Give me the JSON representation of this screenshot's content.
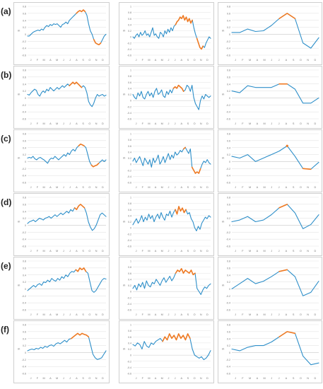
{
  "row_labels": [
    "(a)",
    "(b)",
    "(c)",
    "(d)",
    "(e)",
    "(f)"
  ],
  "colors": {
    "series": "#2e8fc9",
    "highlight": "#f07a22",
    "grid": "#e3e3e3",
    "axis": "#c8c8c8",
    "frame": "#cfcfcf"
  },
  "chart_data": [
    {
      "row": "(a)",
      "col": "smoothed",
      "type": "line",
      "x_ticks": [
        "J",
        "F",
        "M",
        "A",
        "M",
        "J",
        "J",
        "A",
        "S",
        "O",
        "N",
        "D"
      ],
      "y_ticks": [
        "0.8",
        "0.6",
        "0.4",
        "0.2",
        "0",
        "-0.2",
        "-0.4",
        "-0.6"
      ],
      "ylim": [
        -0.6,
        0.8
      ],
      "ylabel": "m",
      "values": [
        -0.05,
        -0.05,
        0.0,
        0.05,
        0.08,
        0.1,
        0.12,
        0.1,
        0.15,
        0.12,
        0.2,
        0.25,
        0.22,
        0.28,
        0.25,
        0.3,
        0.28,
        0.3,
        0.25,
        0.2,
        0.28,
        0.3,
        0.35,
        0.3,
        0.4,
        0.45,
        0.5,
        0.55,
        0.6,
        0.65,
        0.68,
        0.65,
        0.7,
        0.65,
        0.55,
        0.3,
        0.1,
        0.0,
        -0.15,
        -0.25,
        -0.28,
        -0.3,
        -0.25,
        -0.15,
        -0.05,
        0.0
      ],
      "highlight": [
        [
          28,
          33
        ],
        [
          38,
          42
        ]
      ]
    },
    {
      "row": "(a)",
      "col": "daily",
      "type": "line",
      "x_ticks": [
        "J",
        "F",
        "M",
        "A",
        "M",
        "J",
        "J",
        "A",
        "S",
        "O",
        "N",
        "D"
      ],
      "y_ticks": [
        "1",
        "0.8",
        "0.6",
        "0.4",
        "0.2",
        "0",
        "-0.2",
        "-0.4",
        "-0.6"
      ],
      "ylim": [
        -0.6,
        1.0
      ],
      "ylabel": "m",
      "values": [
        0.0,
        -0.05,
        0.05,
        0.1,
        0.0,
        0.15,
        0.05,
        0.1,
        0.2,
        0.05,
        0.1,
        0.0,
        0.15,
        0.3,
        0.05,
        0.1,
        0.0,
        -0.05,
        0.15,
        0.1,
        0.0,
        0.2,
        0.1,
        0.25,
        0.15,
        0.3,
        0.2,
        0.35,
        0.4,
        0.5,
        0.55,
        0.65,
        0.6,
        0.7,
        0.55,
        0.65,
        0.5,
        0.6,
        0.45,
        0.55,
        0.3,
        0.1,
        -0.05,
        -0.2,
        -0.35,
        -0.4,
        -0.3,
        -0.35,
        -0.2,
        -0.1,
        0.0,
        -0.05
      ],
      "highlight": [
        [
          28,
          39
        ],
        [
          42,
          46
        ]
      ]
    },
    {
      "row": "(a)",
      "col": "monthly",
      "type": "line",
      "x_ticks": [
        "J",
        "F",
        "M",
        "A",
        "M",
        "J",
        "J",
        "A",
        "S",
        "O",
        "N",
        "D"
      ],
      "y_ticks": [
        "0.8",
        "0.6",
        "0.4",
        "0.2",
        "0",
        "-0.2",
        "-0.4",
        "-0.6"
      ],
      "ylim": [
        -0.6,
        0.8
      ],
      "ylabel": "m",
      "values": [
        0.05,
        0.05,
        0.15,
        0.08,
        0.1,
        0.25,
        0.45,
        0.6,
        0.45,
        -0.25,
        -0.4,
        -0.1
      ],
      "highlight": [
        [
          6,
          8
        ]
      ]
    },
    {
      "row": "(b)",
      "col": "smoothed",
      "type": "line",
      "x_ticks": [
        "J",
        "F",
        "M",
        "A",
        "M",
        "J",
        "J",
        "A",
        "S",
        "O",
        "N",
        "D"
      ],
      "y_ticks": [
        "0.8",
        "0.6",
        "0.4",
        "0.2",
        "0",
        "-0.2",
        "-0.4",
        "-0.6"
      ],
      "ylim": [
        -0.6,
        0.8
      ],
      "ylabel": "m",
      "values": [
        0.1,
        0.08,
        0.15,
        0.2,
        0.25,
        0.22,
        0.1,
        0.05,
        0.15,
        0.2,
        0.15,
        0.25,
        0.2,
        0.3,
        0.25,
        0.2,
        0.25,
        0.3,
        0.25,
        0.3,
        0.35,
        0.3,
        0.35,
        0.4,
        0.35,
        0.4,
        0.45,
        0.4,
        0.45,
        0.4,
        0.35,
        0.3,
        0.35,
        0.3,
        0.15,
        -0.1,
        -0.2,
        -0.25,
        -0.15,
        0.0,
        0.1,
        0.05,
        0.08,
        0.1,
        0.05,
        0.08
      ],
      "highlight": [
        [
          24,
          31
        ]
      ]
    },
    {
      "row": "(b)",
      "col": "daily",
      "type": "line",
      "x_ticks": [
        "J",
        "F",
        "M",
        "A",
        "M",
        "J",
        "J",
        "A",
        "S",
        "O",
        "N",
        "D"
      ],
      "y_ticks": [
        "1",
        "0.8",
        "0.6",
        "0.4",
        "0.2",
        "0",
        "-0.2",
        "-0.4",
        "-0.6"
      ],
      "ylim": [
        -0.6,
        1.0
      ],
      "ylabel": "m",
      "values": [
        0.2,
        0.1,
        0.05,
        0.25,
        0.15,
        0.3,
        0.1,
        0.05,
        0.2,
        0.3,
        0.15,
        0.25,
        0.1,
        0.3,
        0.4,
        0.2,
        0.25,
        0.35,
        0.15,
        0.1,
        0.3,
        0.2,
        0.35,
        0.25,
        0.4,
        0.45,
        0.4,
        0.5,
        0.45,
        0.4,
        0.3,
        0.35,
        0.5,
        0.45,
        0.3,
        0.5,
        0.1,
        -0.1,
        -0.2,
        -0.3,
        0.0,
        0.15,
        0.05,
        0.2,
        0.15,
        0.1,
        0.15
      ],
      "highlight": [
        [
          24,
          30
        ]
      ]
    },
    {
      "row": "(b)",
      "col": "monthly",
      "type": "line",
      "x_ticks": [
        "J",
        "F",
        "M",
        "A",
        "M",
        "J",
        "J",
        "A",
        "S",
        "O",
        "N",
        "D"
      ],
      "y_ticks": [
        "0.8",
        "0.6",
        "0.4",
        "0.2",
        "0",
        "-0.2",
        "-0.4",
        "-0.6"
      ],
      "ylim": [
        -0.6,
        0.8
      ],
      "ylabel": "m",
      "values": [
        0.2,
        0.15,
        0.35,
        0.3,
        0.3,
        0.3,
        0.4,
        0.4,
        0.25,
        -0.15,
        -0.15,
        0.0
      ],
      "highlight": [
        [
          6,
          7
        ]
      ]
    },
    {
      "row": "(c)",
      "col": "smoothed",
      "type": "line",
      "x_ticks": [
        "J",
        "F",
        "M",
        "A",
        "M",
        "J",
        "J",
        "A",
        "S",
        "O",
        "N",
        "D"
      ],
      "y_ticks": [
        "0.8",
        "0.6",
        "0.4",
        "0.2",
        "0",
        "-0.2",
        "-0.4",
        "-0.6"
      ],
      "ylim": [
        -0.6,
        0.8
      ],
      "ylabel": "m",
      "values": [
        0.1,
        0.12,
        0.1,
        0.15,
        0.08,
        0.05,
        0.1,
        0.12,
        0.08,
        0.05,
        0.0,
        -0.05,
        0.05,
        0.1,
        0.08,
        0.15,
        0.1,
        0.05,
        0.1,
        0.15,
        0.2,
        0.15,
        0.25,
        0.2,
        0.3,
        0.35,
        0.3,
        0.4,
        0.45,
        0.5,
        0.48,
        0.45,
        0.4,
        0.2,
        0.0,
        -0.1,
        -0.15,
        -0.12,
        -0.1,
        -0.05,
        0.0,
        0.05,
        0.0,
        0.05
      ],
      "highlight": [
        [
          28,
          31
        ],
        [
          35,
          39
        ]
      ]
    },
    {
      "row": "(c)",
      "col": "daily",
      "type": "line",
      "x_ticks": [
        "J",
        "F",
        "M",
        "A",
        "M",
        "J",
        "J",
        "A",
        "S",
        "O",
        "N",
        "D"
      ],
      "y_ticks": [
        "1",
        "0.8",
        "0.6",
        "0.4",
        "0.2",
        "0",
        "-0.2",
        "-0.4",
        "-0.6"
      ],
      "ylim": [
        -0.6,
        1.0
      ],
      "ylabel": "m",
      "values": [
        0.1,
        0.2,
        0.05,
        0.15,
        0.25,
        0.1,
        -0.05,
        0.2,
        0.1,
        0.0,
        0.15,
        -0.1,
        0.2,
        0.05,
        0.15,
        0.3,
        0.0,
        0.1,
        0.25,
        0.05,
        0.2,
        0.35,
        0.15,
        0.3,
        0.2,
        0.4,
        0.3,
        0.35,
        0.45,
        0.4,
        0.5,
        0.55,
        0.45,
        0.35,
        0.5,
        -0.1,
        -0.2,
        -0.3,
        -0.25,
        -0.3,
        -0.15,
        0.0,
        0.1,
        0.05,
        0.15,
        0.05,
        0.0
      ],
      "highlight": [
        [
          30,
          31
        ],
        [
          35,
          40
        ]
      ]
    },
    {
      "row": "(c)",
      "col": "monthly",
      "type": "line",
      "x_ticks": [
        "J",
        "F",
        "M",
        "A",
        "M",
        "J",
        "J",
        "A",
        "S",
        "O",
        "N",
        "D"
      ],
      "y_ticks": [
        "0.8",
        "0.6",
        "0.4",
        "0.2",
        "0",
        "-0.2",
        "-0.4",
        "-0.6"
      ],
      "ylim": [
        -0.6,
        0.8
      ],
      "ylabel": "m",
      "values": [
        0.15,
        0.1,
        0.2,
        0.0,
        0.1,
        0.2,
        0.3,
        0.45,
        0.15,
        -0.2,
        -0.22,
        -0.02
      ],
      "highlight": [
        [
          7,
          7
        ],
        [
          9,
          10
        ]
      ]
    },
    {
      "row": "(d)",
      "col": "smoothed",
      "type": "line",
      "x_ticks": [
        "J",
        "F",
        "M",
        "A",
        "M",
        "J",
        "J",
        "A",
        "S",
        "O",
        "N",
        "D"
      ],
      "y_ticks": [
        "0.8",
        "0.6",
        "0.4",
        "0.2",
        "0",
        "-0.2",
        "-0.4",
        "-0.6"
      ],
      "ylim": [
        -0.6,
        0.8
      ],
      "ylabel": "m",
      "values": [
        0.05,
        0.1,
        0.12,
        0.15,
        0.1,
        0.15,
        0.2,
        0.18,
        0.15,
        0.2,
        0.22,
        0.25,
        0.2,
        0.25,
        0.3,
        0.25,
        0.3,
        0.35,
        0.3,
        0.35,
        0.4,
        0.35,
        0.45,
        0.4,
        0.5,
        0.45,
        0.55,
        0.6,
        0.55,
        0.5,
        0.35,
        0.1,
        -0.05,
        -0.15,
        -0.1,
        0.0,
        0.15,
        0.3,
        0.35,
        0.3,
        0.25
      ],
      "highlight": [
        [
          24,
          29
        ]
      ]
    },
    {
      "row": "(d)",
      "col": "daily",
      "type": "line",
      "x_ticks": [
        "J",
        "F",
        "M",
        "A",
        "M",
        "J",
        "J",
        "A",
        "S",
        "O",
        "N",
        "D"
      ],
      "y_ticks": [
        "1",
        "0.8",
        "0.6",
        "0.4",
        "0.2",
        "0",
        "-0.2",
        "-0.4",
        "-0.6"
      ],
      "ylim": [
        -0.6,
        1.0
      ],
      "ylabel": "m",
      "values": [
        0.1,
        0.2,
        0.3,
        0.15,
        0.25,
        0.4,
        0.2,
        0.35,
        0.25,
        0.45,
        0.3,
        0.4,
        0.2,
        0.35,
        0.45,
        0.3,
        0.5,
        0.35,
        0.25,
        0.45,
        0.4,
        0.55,
        0.35,
        0.5,
        0.6,
        0.45,
        0.7,
        0.55,
        0.65,
        0.5,
        0.6,
        0.45,
        0.5,
        0.3,
        0.2,
        0.0,
        -0.1,
        0.05,
        -0.05,
        0.15,
        0.25,
        0.35,
        0.3,
        0.4,
        0.35
      ],
      "highlight": [
        [
          24,
          30
        ]
      ]
    },
    {
      "row": "(d)",
      "col": "monthly",
      "type": "line",
      "x_ticks": [
        "J",
        "F",
        "M",
        "A",
        "M",
        "J",
        "J",
        "A",
        "S",
        "O",
        "N",
        "D"
      ],
      "y_ticks": [
        "0.8",
        "0.6",
        "0.4",
        "0.2",
        "0",
        "-0.2",
        "-0.4",
        "-0.6"
      ],
      "ylim": [
        -0.6,
        0.8
      ],
      "ylabel": "m",
      "values": [
        0.1,
        0.15,
        0.25,
        0.1,
        0.15,
        0.3,
        0.5,
        0.6,
        0.35,
        -0.1,
        0.02,
        0.3
      ],
      "highlight": [
        [
          6,
          7
        ]
      ]
    },
    {
      "row": "(e)",
      "col": "smoothed",
      "type": "line",
      "x_ticks": [
        "J",
        "F",
        "M",
        "A",
        "M",
        "J",
        "J",
        "A",
        "S",
        "O",
        "N",
        "D"
      ],
      "y_ticks": [
        "0.8",
        "0.6",
        "0.4",
        "0.2",
        "0",
        "-0.2",
        "-0.4",
        "-0.6"
      ],
      "ylim": [
        -0.6,
        0.8
      ],
      "ylabel": "m",
      "values": [
        -0.05,
        0.0,
        0.05,
        0.1,
        0.05,
        0.12,
        0.15,
        0.1,
        0.2,
        0.18,
        0.25,
        0.2,
        0.3,
        0.25,
        0.22,
        0.3,
        0.25,
        0.35,
        0.3,
        0.4,
        0.35,
        0.45,
        0.5,
        0.48,
        0.55,
        0.5,
        0.6,
        0.55,
        0.6,
        0.5,
        0.45,
        0.2,
        -0.05,
        -0.1,
        -0.05,
        0.05,
        0.15,
        0.25,
        0.3,
        0.28
      ],
      "highlight": [
        [
          24,
          29
        ]
      ]
    },
    {
      "row": "(e)",
      "col": "daily",
      "type": "line",
      "x_ticks": [
        "J",
        "F",
        "M",
        "A",
        "M",
        "J",
        "J",
        "A",
        "S",
        "O",
        "N",
        "D"
      ],
      "y_ticks": [
        "1",
        "0.8",
        "0.6",
        "0.4",
        "0.2",
        "0",
        "-0.2",
        "-0.4",
        "-0.6"
      ],
      "ylim": [
        -0.6,
        1.0
      ],
      "ylabel": "m",
      "values": [
        0.1,
        0.2,
        0.05,
        0.25,
        0.15,
        0.3,
        0.1,
        0.35,
        0.2,
        0.15,
        0.3,
        0.25,
        0.4,
        0.3,
        0.2,
        0.35,
        0.45,
        0.3,
        0.4,
        0.5,
        0.35,
        0.45,
        0.6,
        0.7,
        0.65,
        0.75,
        0.6,
        0.7,
        0.65,
        0.6,
        0.7,
        0.55,
        0.6,
        0.1,
        0.0,
        -0.1,
        0.05,
        0.15,
        0.1,
        0.2,
        0.25
      ],
      "highlight": [
        [
          22,
          32
        ]
      ]
    },
    {
      "row": "(e)",
      "col": "monthly",
      "type": "line",
      "x_ticks": [
        "J",
        "F",
        "M",
        "A",
        "M",
        "J",
        "J",
        "A",
        "S",
        "O",
        "N",
        "D"
      ],
      "y_ticks": [
        "0.8",
        "0.6",
        "0.4",
        "0.2",
        "0",
        "-0.2",
        "-0.4",
        "-0.6"
      ],
      "ylim": [
        -0.6,
        0.8
      ],
      "ylabel": "m",
      "values": [
        0.0,
        0.15,
        0.3,
        0.15,
        0.22,
        0.35,
        0.5,
        0.55,
        0.35,
        -0.2,
        -0.1,
        0.22
      ],
      "highlight": [
        [
          6,
          7
        ]
      ]
    },
    {
      "row": "(f)",
      "col": "smoothed",
      "type": "line",
      "x_ticks": [
        "J",
        "F",
        "M",
        "A",
        "M",
        "J",
        "J",
        "A",
        "S",
        "O",
        "N",
        "D"
      ],
      "y_ticks": [
        "0.8",
        "0.6",
        "0.4",
        "0.2",
        "0",
        "-0.2",
        "-0.4",
        "-0.6"
      ],
      "ylim": [
        -0.6,
        0.8
      ],
      "ylabel": "m",
      "values": [
        0.05,
        0.08,
        0.1,
        0.08,
        0.12,
        0.1,
        0.15,
        0.12,
        0.18,
        0.15,
        0.2,
        0.22,
        0.18,
        0.25,
        0.28,
        0.25,
        0.3,
        0.35,
        0.3,
        0.38,
        0.4,
        0.45,
        0.5,
        0.55,
        0.5,
        0.55,
        0.52,
        0.5,
        0.45,
        0.2,
        -0.05,
        -0.15,
        -0.2,
        -0.18,
        -0.15,
        -0.05,
        0.05
      ],
      "highlight": [
        [
          20,
          28
        ]
      ]
    },
    {
      "row": "(f)",
      "col": "daily",
      "type": "line",
      "x_ticks": [
        "J",
        "F",
        "M",
        "A",
        "M",
        "J",
        "J",
        "A",
        "S",
        "O",
        "N",
        "D"
      ],
      "y_ticks": [
        "1",
        "0.8",
        "0.6",
        "0.4",
        "0.2",
        "0",
        "-0.2",
        "-0.4",
        "-0.6"
      ],
      "ylim": [
        -0.6,
        1.0
      ],
      "ylabel": "m",
      "values": [
        0.35,
        0.3,
        0.4,
        0.35,
        0.2,
        0.45,
        0.3,
        0.25,
        0.4,
        0.35,
        0.45,
        0.5,
        0.55,
        0.45,
        0.6,
        0.5,
        0.7,
        0.55,
        0.65,
        0.5,
        0.7,
        0.55,
        0.65,
        0.5,
        0.7,
        0.55,
        0.2,
        0.0,
        -0.05,
        -0.1,
        -0.05,
        -0.15,
        -0.1,
        0.0,
        0.15
      ],
      "highlight": [
        [
          13,
          25
        ]
      ]
    },
    {
      "row": "(f)",
      "col": "monthly",
      "type": "line",
      "x_ticks": [
        "J",
        "F",
        "M",
        "A",
        "M",
        "J",
        "J",
        "A",
        "S",
        "O",
        "N",
        "D"
      ],
      "y_ticks": [
        "0.8",
        "0.6",
        "0.4",
        "0.2",
        "0",
        "-0.2",
        "-0.4",
        "-0.6"
      ],
      "ylim": [
        -0.6,
        0.8
      ],
      "ylabel": "m",
      "values": [
        0.1,
        0.05,
        0.15,
        0.2,
        0.2,
        0.3,
        0.45,
        0.6,
        0.55,
        -0.1,
        -0.35,
        -0.3
      ],
      "highlight": [
        [
          6,
          8
        ]
      ]
    }
  ]
}
